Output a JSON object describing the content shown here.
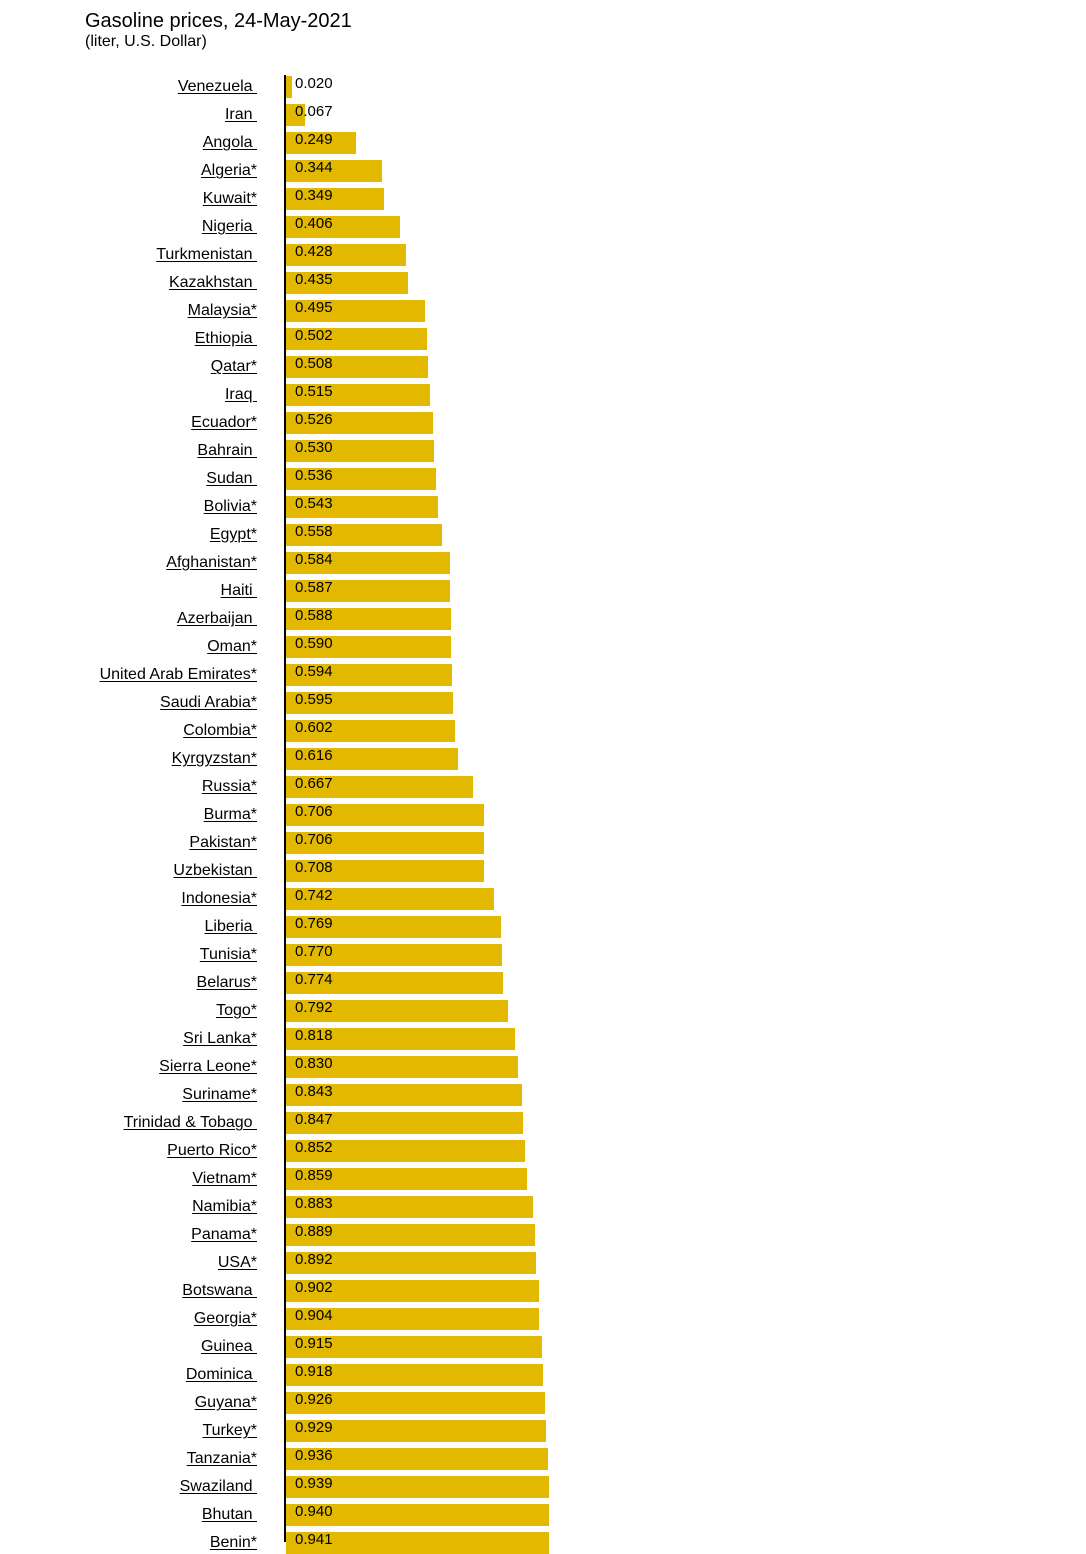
{
  "chart_data": {
    "type": "bar",
    "orientation": "horizontal",
    "title": "Gasoline prices, 24-May-2021",
    "subtitle": "(liter, U.S. Dollar)",
    "bar_color": "#e2b900",
    "xlim": [
      0,
      1.0
    ],
    "grid": false,
    "legend": "none",
    "categories": [
      "Venezuela ",
      "Iran ",
      "Angola ",
      "Algeria*",
      "Kuwait*",
      "Nigeria ",
      "Turkmenistan ",
      "Kazakhstan ",
      "Malaysia*",
      "Ethiopia ",
      "Qatar*",
      "Iraq ",
      "Ecuador*",
      "Bahrain ",
      "Sudan ",
      "Bolivia*",
      "Egypt*",
      "Afghanistan*",
      "Haiti ",
      "Azerbaijan ",
      "Oman*",
      "United Arab Emirates*",
      "Saudi Arabia*",
      "Colombia*",
      "Kyrgyzstan*",
      "Russia*",
      "Burma*",
      "Pakistan*",
      "Uzbekistan ",
      "Indonesia*",
      "Liberia ",
      "Tunisia*",
      "Belarus*",
      "Togo*",
      "Sri Lanka*",
      "Sierra Leone*",
      "Suriname*",
      "Trinidad & Tobago ",
      "Puerto Rico*",
      "Vietnam*",
      "Namibia*",
      "Panama*",
      "USA*",
      "Botswana ",
      "Georgia*",
      "Guinea ",
      "Dominica ",
      "Guyana*",
      "Turkey*",
      "Tanzania*",
      "Swaziland ",
      "Bhutan ",
      "Benin*"
    ],
    "values": [
      0.02,
      0.067,
      0.249,
      0.344,
      0.349,
      0.406,
      0.428,
      0.435,
      0.495,
      0.502,
      0.508,
      0.515,
      0.526,
      0.53,
      0.536,
      0.543,
      0.558,
      0.584,
      0.587,
      0.588,
      0.59,
      0.594,
      0.595,
      0.602,
      0.616,
      0.667,
      0.706,
      0.706,
      0.708,
      0.742,
      0.769,
      0.77,
      0.774,
      0.792,
      0.818,
      0.83,
      0.843,
      0.847,
      0.852,
      0.859,
      0.883,
      0.889,
      0.892,
      0.902,
      0.904,
      0.915,
      0.918,
      0.926,
      0.929,
      0.936,
      0.939,
      0.94,
      0.941
    ],
    "value_labels": [
      "0.020",
      "0.067",
      "0.249",
      "0.344",
      "0.349",
      "0.406",
      "0.428",
      "0.435",
      "0.495",
      "0.502",
      "0.508",
      "0.515",
      "0.526",
      "0.530",
      "0.536",
      "0.543",
      "0.558",
      "0.584",
      "0.587",
      "0.588",
      "0.590",
      "0.594",
      "0.595",
      "0.602",
      "0.616",
      "0.667",
      "0.706",
      "0.706",
      "0.708",
      "0.742",
      "0.769",
      "0.770",
      "0.774",
      "0.792",
      "0.818",
      "0.830",
      "0.843",
      "0.847",
      "0.852",
      "0.859",
      "0.883",
      "0.889",
      "0.892",
      "0.902",
      "0.904",
      "0.915",
      "0.918",
      "0.926",
      "0.929",
      "0.936",
      "0.939",
      "0.940",
      "0.941"
    ]
  }
}
